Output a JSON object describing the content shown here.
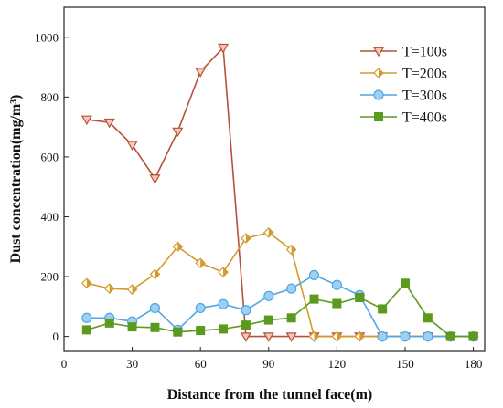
{
  "chart_data": {
    "type": "line",
    "title": "",
    "xlabel": "Distance from the tunnel face(m)",
    "ylabel": "Dust concentration(mg/m³)",
    "xlim": [
      0,
      185
    ],
    "ylim": [
      -50,
      1100
    ],
    "xticks": [
      0,
      30,
      60,
      90,
      120,
      150,
      180
    ],
    "yticks": [
      0,
      200,
      400,
      600,
      800,
      1000
    ],
    "grid": false,
    "legend_position": "top-right",
    "series": [
      {
        "name": "T=100s",
        "color": "#b5513a",
        "marker": "triangle-down",
        "x": [
          10,
          20,
          30,
          40,
          50,
          60,
          70,
          80,
          90,
          100,
          110,
          120,
          130,
          140,
          150,
          160,
          170,
          180
        ],
        "y": [
          725,
          715,
          640,
          528,
          685,
          885,
          965,
          0,
          0,
          0,
          0,
          0,
          0,
          0,
          0,
          0,
          0,
          0
        ]
      },
      {
        "name": "T=200s",
        "color": "#d39a2e",
        "marker": "diamond",
        "x": [
          10,
          20,
          30,
          40,
          50,
          60,
          70,
          80,
          90,
          100,
          110,
          120,
          130,
          140,
          150,
          160,
          170,
          180
        ],
        "y": [
          178,
          160,
          157,
          208,
          300,
          245,
          215,
          328,
          347,
          290,
          0,
          0,
          0,
          0,
          0,
          0,
          0,
          0
        ]
      },
      {
        "name": "T=300s",
        "color": "#4ea7e6",
        "marker": "circle",
        "x": [
          10,
          20,
          30,
          40,
          50,
          60,
          70,
          80,
          90,
          100,
          110,
          120,
          130,
          140,
          150,
          160,
          170,
          180
        ],
        "y": [
          62,
          62,
          50,
          95,
          22,
          95,
          108,
          88,
          135,
          160,
          205,
          172,
          138,
          0,
          0,
          0,
          0,
          0
        ]
      },
      {
        "name": "T=400s",
        "color": "#5b9a1e",
        "marker": "square",
        "x": [
          10,
          20,
          30,
          40,
          50,
          60,
          70,
          80,
          90,
          100,
          110,
          120,
          130,
          140,
          150,
          160,
          170,
          180
        ],
        "y": [
          22,
          45,
          32,
          30,
          15,
          20,
          25,
          38,
          55,
          62,
          125,
          110,
          130,
          92,
          178,
          62,
          0,
          0
        ]
      }
    ]
  }
}
